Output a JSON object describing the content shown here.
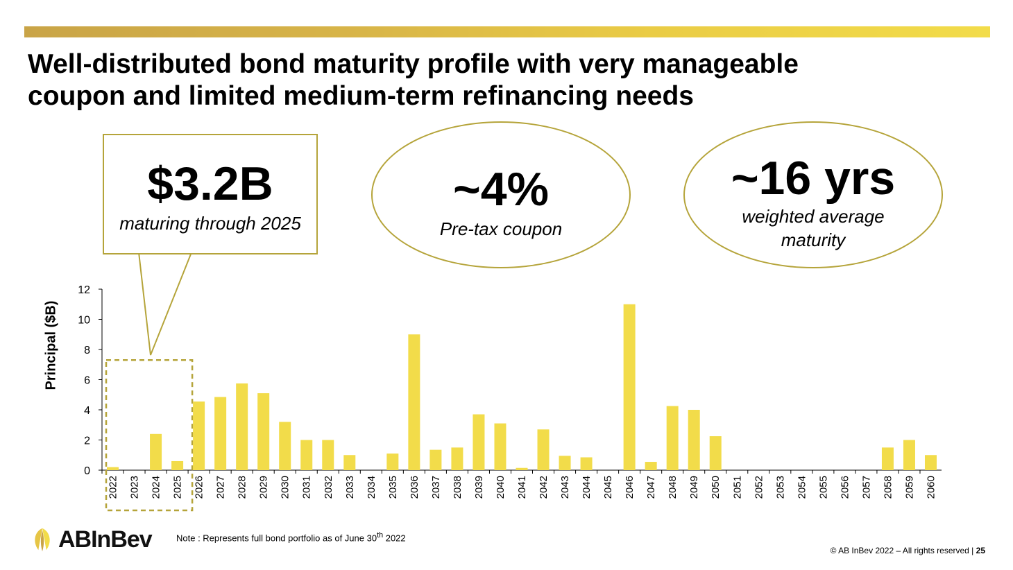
{
  "header": {
    "title_line1": "Well-distributed bond maturity profile with very manageable",
    "title_line2": "coupon and limited medium-term refinancing needs"
  },
  "callout": {
    "value": "$3.2B",
    "caption": "maturing through 2025"
  },
  "kpi_coupon": {
    "value": "~4%",
    "caption": "Pre-tax coupon"
  },
  "kpi_maturity": {
    "value": "~16 yrs",
    "caption": "weighted average maturity"
  },
  "footer": {
    "note": "Note : Represents full bond portfolio as of June 30",
    "note_sup": "th",
    "note_end": " 2022",
    "copyright": "© AB InBev 2022 – All rights reserved | ",
    "page": "25",
    "logo_text": "ABInBev"
  },
  "colors": {
    "bar": "#f2dc4a",
    "accent": "#b5a43a",
    "topbar_start": "#c9a447",
    "topbar_end": "#f2dc4a"
  },
  "chart_data": {
    "type": "bar",
    "ylabel": "Principal ($B)",
    "ylim": [
      0,
      12
    ],
    "yticks": [
      0,
      2,
      4,
      6,
      8,
      10,
      12
    ],
    "grid": false,
    "legend": "none",
    "categories": [
      "2022",
      "2023",
      "2024",
      "2025",
      "2026",
      "2027",
      "2028",
      "2029",
      "2030",
      "2031",
      "2032",
      "2033",
      "2034",
      "2035",
      "2036",
      "2037",
      "2038",
      "2039",
      "2040",
      "2041",
      "2042",
      "2043",
      "2044",
      "2045",
      "2046",
      "2047",
      "2048",
      "2049",
      "2050",
      "2051",
      "2052",
      "2053",
      "2054",
      "2055",
      "2056",
      "2057",
      "2058",
      "2059",
      "2060"
    ],
    "values": [
      0.2,
      0,
      2.4,
      0.6,
      4.55,
      4.85,
      5.75,
      5.1,
      3.2,
      2.0,
      2.0,
      1.0,
      0,
      1.1,
      9.0,
      1.35,
      1.5,
      3.7,
      3.1,
      0.15,
      2.7,
      0.95,
      0.85,
      0,
      11.0,
      0.55,
      4.25,
      4.0,
      2.25,
      0,
      0,
      0,
      0,
      0,
      0,
      0,
      1.5,
      2.0,
      1.0
    ],
    "highlight_range": [
      "2022",
      "2025"
    ]
  }
}
